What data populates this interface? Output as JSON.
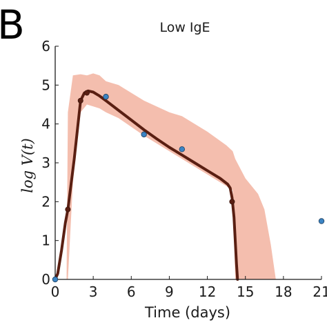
{
  "panel_label": "B",
  "chart_data": {
    "type": "line",
    "title": "Low IgE",
    "xlabel": "Time (days)",
    "ylabel": "log V(t)",
    "xlim": [
      0,
      21
    ],
    "ylim": [
      0,
      6
    ],
    "x_ticks": [
      0,
      3,
      6,
      9,
      12,
      15,
      18,
      21
    ],
    "y_ticks": [
      0,
      1,
      2,
      3,
      4,
      5,
      6
    ],
    "grid": false,
    "band": {
      "x": [
        0.9,
        1.0,
        1.4,
        2.0,
        2.5,
        3.0,
        3.5,
        4.0,
        5.0,
        7.0,
        9.0,
        10.0,
        12.0,
        13.5,
        14.0,
        14.2,
        15.0,
        16.0,
        16.5,
        17.0,
        17.4
      ],
      "upper": [
        0.0,
        4.3,
        5.25,
        5.28,
        5.25,
        5.3,
        5.25,
        5.1,
        5.0,
        4.6,
        4.3,
        4.2,
        3.8,
        3.45,
        3.3,
        3.1,
        2.6,
        2.2,
        1.8,
        0.9,
        0.0
      ],
      "lower": [
        0.0,
        0.0,
        2.5,
        4.3,
        4.5,
        4.45,
        4.4,
        4.3,
        4.15,
        3.7,
        3.3,
        3.1,
        2.7,
        2.4,
        2.3,
        0.0,
        0.0,
        0.0,
        0.0,
        0.0,
        0.0
      ]
    },
    "model_curve": {
      "color": "#5a1f12",
      "x": [
        0.0,
        0.2,
        0.5,
        0.8,
        1.0,
        1.5,
        2.0,
        2.3,
        2.6,
        3.0,
        3.5,
        4.0,
        5.0,
        6.0,
        7.0,
        8.0,
        9.0,
        10.0,
        11.0,
        12.0,
        13.0,
        13.6,
        13.8,
        13.95,
        14.1,
        14.2,
        14.3,
        14.38
      ],
      "y": [
        0.0,
        0.15,
        0.75,
        1.45,
        1.8,
        3.1,
        4.6,
        4.8,
        4.85,
        4.82,
        4.72,
        4.6,
        4.35,
        4.1,
        3.85,
        3.62,
        3.4,
        3.2,
        3.0,
        2.8,
        2.6,
        2.45,
        2.35,
        2.1,
        1.6,
        1.0,
        0.4,
        0.0
      ]
    },
    "model_points": {
      "x": [
        1.0,
        2.0,
        2.5,
        13.95
      ],
      "y": [
        1.8,
        4.6,
        4.8,
        2.0
      ]
    },
    "observations": {
      "color": "#3b84c4",
      "x": [
        0,
        4,
        7,
        10,
        21
      ],
      "y": [
        0.0,
        4.7,
        3.73,
        3.35,
        1.5
      ]
    }
  }
}
